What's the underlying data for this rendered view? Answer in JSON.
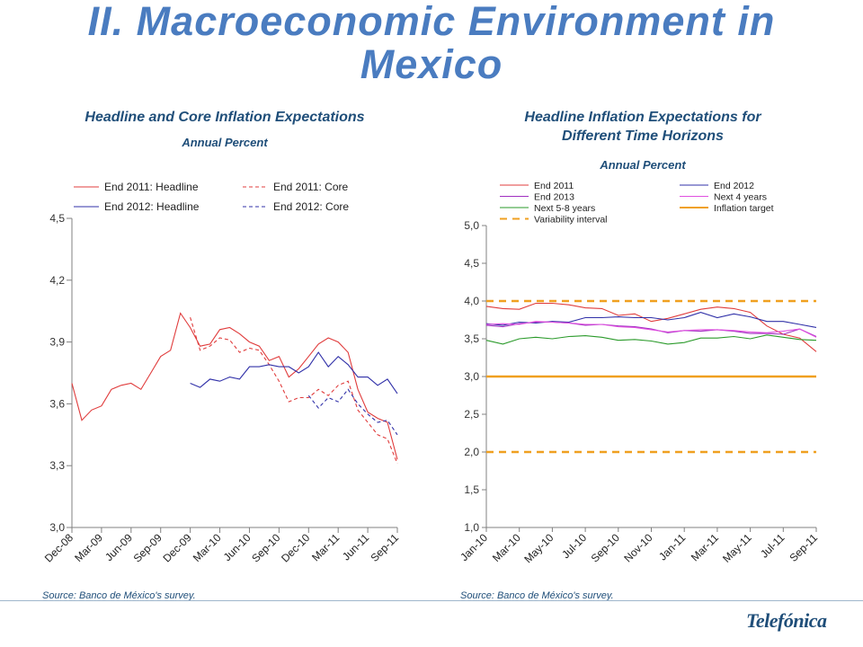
{
  "page": {
    "title_line1": "II. Macroeconomic Environment in",
    "title_line2": "Mexico",
    "logo_text": "Telefónica"
  },
  "left_chart": {
    "title": "Headline and Core Inflation Expectations",
    "subtitle": "Annual Percent",
    "source": "Source: Banco de México's survey."
  },
  "right_chart": {
    "title_line1": "Headline Inflation Expectations for",
    "title_line2": "Different Time Horizons",
    "subtitle": "Annual Percent",
    "source": "Source: Banco de México's survey."
  },
  "chart_data": [
    {
      "type": "line",
      "title": "Headline and Core Inflation Expectations",
      "subtitle": "Annual Percent",
      "ylim": [
        3.0,
        4.5
      ],
      "yticks": [
        "3,0",
        "3,3",
        "3,6",
        "3,9",
        "4,2",
        "4,5"
      ],
      "x_tick_labels": [
        "Dec-08",
        "Mar-09",
        "Jun-09",
        "Sep-09",
        "Dec-09",
        "Mar-10",
        "Jun-10",
        "Sep-10",
        "Dec-10",
        "Mar-11",
        "Jun-11",
        "Sep-11"
      ],
      "n_periods": 34,
      "legend_position": "top",
      "series": [
        {
          "name": "End 2011: Headline",
          "color": "#e03c3c",
          "dash": "solid",
          "start": 0,
          "values": [
            3.7,
            3.52,
            3.57,
            3.59,
            3.67,
            3.69,
            3.7,
            3.67,
            3.75,
            3.83,
            3.86,
            4.04,
            3.97,
            3.88,
            3.89,
            3.96,
            3.97,
            3.94,
            3.9,
            3.88,
            3.81,
            3.83,
            3.73,
            3.77,
            3.83,
            3.89,
            3.92,
            3.9,
            3.85,
            3.67,
            3.56,
            3.53,
            3.51,
            3.33
          ]
        },
        {
          "name": "End 2011: Core",
          "color": "#e03c3c",
          "dash": "4 3",
          "start": 12,
          "values": [
            4.02,
            3.86,
            3.88,
            3.92,
            3.91,
            3.85,
            3.87,
            3.86,
            3.79,
            3.71,
            3.61,
            3.63,
            3.63,
            3.67,
            3.64,
            3.69,
            3.71,
            3.57,
            3.51,
            3.45,
            3.43,
            3.31
          ]
        },
        {
          "name": "End 2012: Headline",
          "color": "#3030a8",
          "dash": "solid",
          "start": 12,
          "values": [
            3.7,
            3.68,
            3.72,
            3.71,
            3.73,
            3.72,
            3.78,
            3.78,
            3.79,
            3.78,
            3.78,
            3.75,
            3.78,
            3.85,
            3.78,
            3.83,
            3.79,
            3.73,
            3.73,
            3.69,
            3.72,
            3.65
          ]
        },
        {
          "name": "End 2012: Core",
          "color": "#3030a8",
          "dash": "4 3",
          "start": 24,
          "values": [
            3.64,
            3.58,
            3.63,
            3.61,
            3.67,
            3.6,
            3.55,
            3.51,
            3.52,
            3.45
          ]
        }
      ]
    },
    {
      "type": "line",
      "title": "Headline Inflation Expectations for Different Time Horizons",
      "subtitle": "Annual Percent",
      "ylim": [
        1.0,
        5.0
      ],
      "yticks": [
        "1,0",
        "1,5",
        "2,0",
        "2,5",
        "3,0",
        "3,5",
        "4,0",
        "4,5",
        "5,0"
      ],
      "x_tick_labels": [
        "Jan-10",
        "Mar-10",
        "May-10",
        "Jul-10",
        "Sep-10",
        "Nov-10",
        "Jan-11",
        "Mar-11",
        "May-11",
        "Jul-11",
        "Sep-11"
      ],
      "n_periods": 21,
      "legend_position": "top",
      "series": [
        {
          "name": "End 2011",
          "color": "#e03c3c",
          "dash": "solid",
          "start": 0,
          "values": [
            3.93,
            3.9,
            3.89,
            3.97,
            3.97,
            3.95,
            3.91,
            3.9,
            3.81,
            3.83,
            3.73,
            3.77,
            3.83,
            3.89,
            3.92,
            3.9,
            3.85,
            3.67,
            3.56,
            3.51,
            3.33
          ]
        },
        {
          "name": "End 2012",
          "color": "#3030a8",
          "dash": "solid",
          "start": 0,
          "values": [
            3.7,
            3.68,
            3.72,
            3.71,
            3.73,
            3.72,
            3.78,
            3.78,
            3.79,
            3.78,
            3.78,
            3.75,
            3.78,
            3.85,
            3.78,
            3.83,
            3.79,
            3.73,
            3.73,
            3.69,
            3.65
          ]
        },
        {
          "name": "End 2013",
          "color": "#a030c0",
          "dash": "solid",
          "start": 0,
          "values": [
            3.68,
            3.66,
            3.7,
            3.72,
            3.72,
            3.71,
            3.68,
            3.69,
            3.67,
            3.66,
            3.63,
            3.58,
            3.61,
            3.6,
            3.62,
            3.6,
            3.57,
            3.57,
            3.56,
            3.63,
            3.53
          ]
        },
        {
          "name": "Next 4 years",
          "color": "#e050e0",
          "dash": "solid",
          "start": 0,
          "values": [
            3.69,
            3.7,
            3.69,
            3.73,
            3.72,
            3.71,
            3.69,
            3.69,
            3.66,
            3.65,
            3.62,
            3.59,
            3.61,
            3.62,
            3.62,
            3.61,
            3.59,
            3.58,
            3.6,
            3.63,
            3.52
          ]
        },
        {
          "name": "Next 5-8 years",
          "color": "#2a9a2a",
          "dash": "solid",
          "start": 0,
          "values": [
            3.48,
            3.43,
            3.5,
            3.52,
            3.5,
            3.53,
            3.54,
            3.52,
            3.48,
            3.49,
            3.47,
            3.43,
            3.45,
            3.51,
            3.51,
            3.53,
            3.5,
            3.55,
            3.52,
            3.49,
            3.48
          ]
        },
        {
          "name": "Inflation target",
          "color": "#f0a020",
          "dash": "solid",
          "width": 2.4,
          "constant": 3.0
        },
        {
          "name": "Variability interval",
          "color": "#f0a020",
          "dash": "8 6",
          "width": 2.4,
          "constants": [
            4.0,
            2.0
          ]
        }
      ]
    }
  ]
}
